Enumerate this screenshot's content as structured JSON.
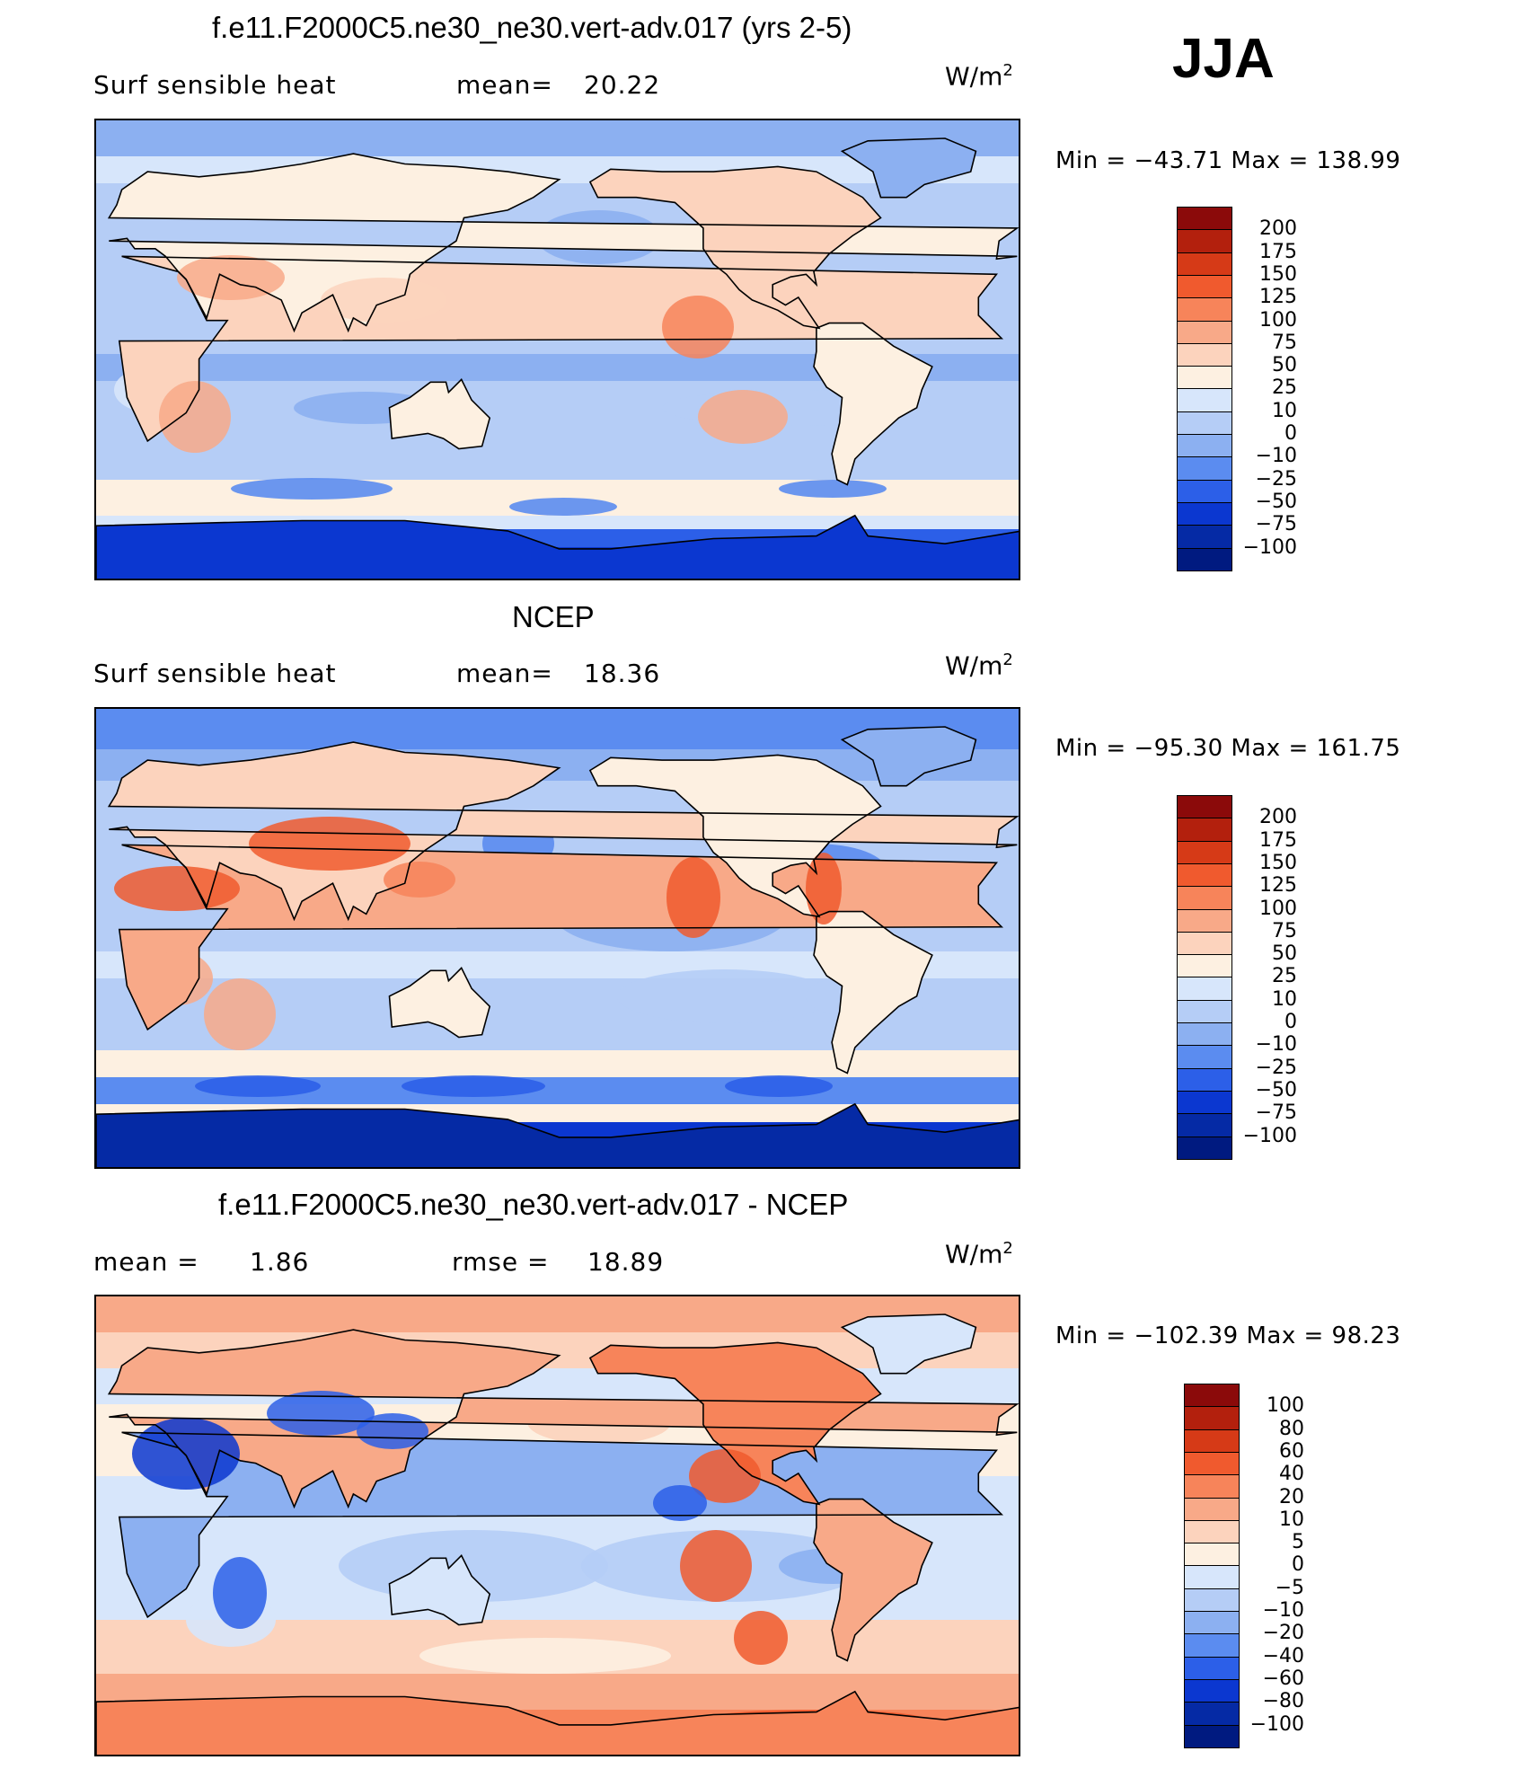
{
  "season": "JJA",
  "panels": [
    {
      "title": "f.e11.F2000C5.ne30_ne30.vert-adv.017 (yrs 2-5)",
      "left_label": "Surf  sensible  heat",
      "stat_label": "mean=",
      "stat_value": "20.22",
      "units_base": "W/m",
      "units_exp": "2",
      "minmax": "Min  =  −43.71  Max  =  138.99"
    },
    {
      "title": "NCEP",
      "left_label": "Surf  sensible  heat",
      "stat_label": "mean=",
      "stat_value": "18.36",
      "units_base": "W/m",
      "units_exp": "2",
      "minmax": "Min  =  −95.30  Max  =  161.75"
    },
    {
      "title": "f.e11.F2000C5.ne30_ne30.vert-adv.017 - NCEP",
      "left_label": "mean  =",
      "left_value": "1.86",
      "stat_label": "rmse  =",
      "stat_value": "18.89",
      "units_base": "W/m",
      "units_exp": "2",
      "minmax": "Min  =  −102.39  Max  =    98.23"
    }
  ],
  "chart_data": [
    {
      "type": "heatmap",
      "title": "f.e11.F2000C5.ne30_ne30.vert-adv.017 (yrs 2-5)",
      "variable": "Surf sensible heat",
      "units": "W/m2",
      "mean": 20.22,
      "min": -43.71,
      "max": 138.99,
      "legend_placement": "right",
      "levels": [
        "200",
        "175",
        "150",
        "125",
        "100",
        "75",
        "50",
        "25",
        "10",
        "0",
        "−10",
        "−25",
        "−50",
        "−75",
        "−100"
      ],
      "colors": [
        "#8b0a0a",
        "#b3200d",
        "#d63a17",
        "#f05a2e",
        "#f7845a",
        "#f8a988",
        "#fcd3bd",
        "#fdf0e1",
        "#d7e6fb",
        "#b5cdf6",
        "#8cb0f1",
        "#5b8cf0",
        "#2c5fe8",
        "#0b37d0",
        "#052aa5",
        "#001a80"
      ]
    },
    {
      "type": "heatmap",
      "title": "NCEP",
      "variable": "Surf sensible heat",
      "units": "W/m2",
      "mean": 18.36,
      "min": -95.3,
      "max": 161.75,
      "legend_placement": "right",
      "levels": [
        "200",
        "175",
        "150",
        "125",
        "100",
        "75",
        "50",
        "25",
        "10",
        "0",
        "−10",
        "−25",
        "−50",
        "−75",
        "−100"
      ],
      "colors": [
        "#8b0a0a",
        "#b3200d",
        "#d63a17",
        "#f05a2e",
        "#f7845a",
        "#f8a988",
        "#fcd3bd",
        "#fdf0e1",
        "#d7e6fb",
        "#b5cdf6",
        "#8cb0f1",
        "#5b8cf0",
        "#2c5fe8",
        "#0b37d0",
        "#052aa5",
        "#001a80"
      ]
    },
    {
      "type": "heatmap",
      "title": "f.e11.F2000C5.ne30_ne30.vert-adv.017 - NCEP",
      "units": "W/m2",
      "mean": 1.86,
      "rmse": 18.89,
      "min": -102.39,
      "max": 98.23,
      "legend_placement": "right",
      "levels": [
        "100",
        "80",
        "60",
        "40",
        "20",
        "10",
        "5",
        "0",
        "−5",
        "−10",
        "−20",
        "−40",
        "−60",
        "−80",
        "−100"
      ],
      "colors": [
        "#8b0a0a",
        "#b3200d",
        "#d63a17",
        "#f05a2e",
        "#f7845a",
        "#f8a988",
        "#fcd3bd",
        "#fdf0e1",
        "#d7e6fb",
        "#b5cdf6",
        "#8cb0f1",
        "#5b8cf0",
        "#2c5fe8",
        "#0b37d0",
        "#052aa5",
        "#001a80"
      ]
    }
  ]
}
